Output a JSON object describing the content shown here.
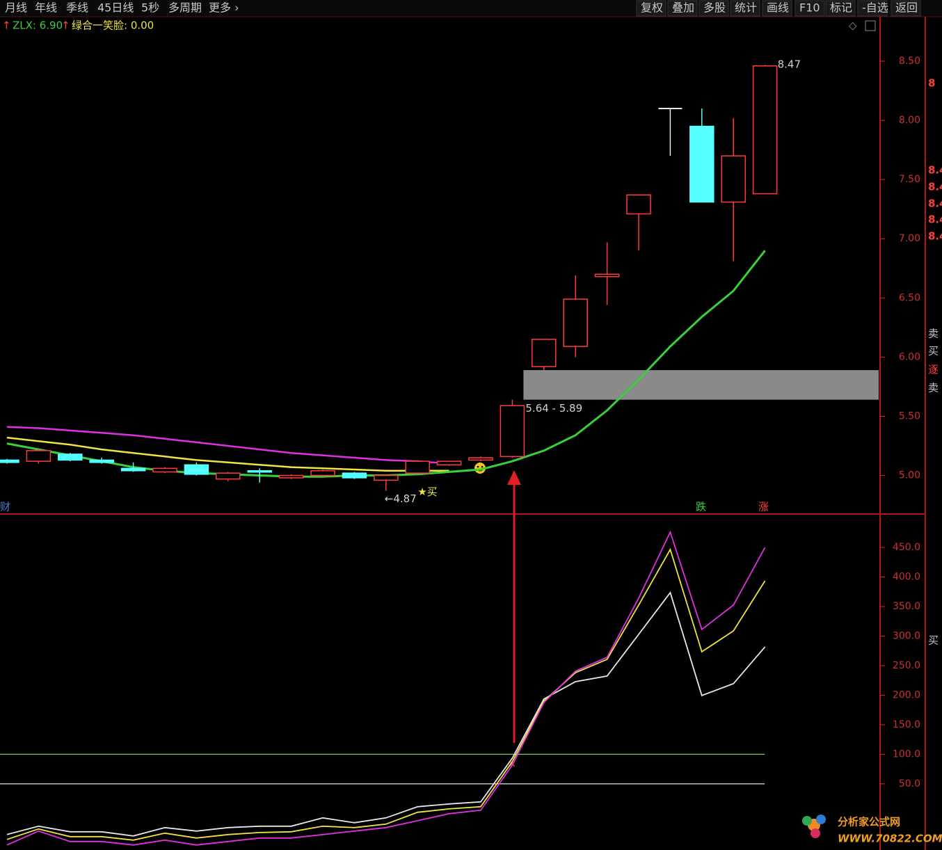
{
  "toolbar": {
    "left": [
      "月线",
      "年线",
      "季线",
      "45日线",
      "5秒",
      "多周期",
      "更多 ›"
    ],
    "right": [
      "复权",
      "叠加",
      "多股",
      "统计",
      "画线",
      "F10",
      "标记",
      "-自选",
      "返回"
    ]
  },
  "legend": [
    "ZLX: 6.90",
    "绿合一笑脸: 0.00"
  ],
  "side_panel": [
    "8",
    "8.4",
    "8.4",
    "8.4",
    "8.4",
    "8.4",
    "卖",
    "买",
    "逐",
    "卖",
    "买"
  ],
  "watermark": {
    "title": "分析家公式网",
    "url": "WWW.70822.COM"
  },
  "chart_data": [
    {
      "type": "candlestick",
      "open": [
        5.13,
        5.12,
        5.18,
        5.13,
        5.06,
        5.03,
        5.09,
        4.97,
        5.04,
        4.98,
        5.0,
        5.02,
        4.96,
        5.02,
        5.09,
        5.13,
        5.16,
        5.92,
        6.09,
        6.68,
        7.21,
        8.1,
        7.95,
        7.31,
        7.38
      ],
      "close": [
        5.11,
        5.21,
        5.13,
        5.11,
        5.04,
        5.06,
        5.01,
        5.02,
        5.03,
        5.0,
        5.04,
        4.98,
        5.0,
        5.12,
        5.12,
        5.15,
        5.59,
        6.15,
        6.49,
        6.7,
        7.37,
        8.1,
        7.31,
        7.7,
        8.46
      ],
      "high": [
        5.14,
        5.22,
        5.19,
        5.15,
        5.11,
        5.07,
        5.11,
        5.03,
        5.06,
        5.01,
        5.05,
        5.03,
        5.01,
        5.13,
        5.12,
        5.16,
        5.64,
        6.15,
        6.69,
        6.97,
        7.37,
        8.1,
        8.1,
        8.02,
        8.47
      ],
      "low": [
        5.1,
        5.1,
        5.12,
        5.1,
        5.03,
        5.02,
        5.0,
        4.95,
        4.94,
        4.97,
        4.99,
        4.97,
        4.87,
        5.01,
        5.08,
        5.12,
        5.15,
        5.89,
        6.0,
        6.44,
        6.9,
        7.7,
        7.31,
        6.81,
        7.38
      ],
      "up_color": "#ff3b3b",
      "down_color": "#54ffff",
      "series": [
        {
          "name": "ZLX",
          "color": "#39d13b",
          "values": [
            5.27,
            5.22,
            5.17,
            5.12,
            5.07,
            5.04,
            5.02,
            5.01,
            5.0,
            4.99,
            4.99,
            5.0,
            5.0,
            5.01,
            5.03,
            5.05,
            5.12,
            5.21,
            5.34,
            5.55,
            5.81,
            6.09,
            6.34,
            6.56,
            6.9
          ]
        },
        {
          "name": "绿合一笑脸",
          "color": "#f0e442",
          "values": [
            5.32,
            5.29,
            5.26,
            5.22,
            5.19,
            5.16,
            5.13,
            5.11,
            5.09,
            5.07,
            5.06,
            5.05,
            5.04,
            5.04,
            5.04,
            null,
            null,
            null,
            null,
            null,
            null,
            null,
            null,
            null,
            null
          ]
        },
        {
          "color": "#e030e0",
          "values": [
            5.41,
            5.4,
            5.38,
            5.36,
            5.34,
            5.31,
            5.28,
            5.25,
            5.22,
            5.19,
            5.17,
            5.15,
            5.13,
            5.12,
            5.1,
            null,
            null,
            null,
            null,
            null,
            null,
            null,
            null,
            null,
            null
          ]
        }
      ],
      "zone": {
        "label": "5.64 - 5.89",
        "low": 5.64,
        "high": 5.89,
        "color": "#8a8a8a"
      },
      "annotations": [
        {
          "text": "8.47",
          "index": 24,
          "value": 8.47
        },
        {
          "text": "←4.87",
          "index": 12,
          "value": 4.87
        },
        {
          "text": "★买",
          "index": 13,
          "value": 4.93
        }
      ],
      "markers": [
        "财",
        "跌",
        "涨"
      ],
      "ylim": [
        4.68,
        8.87
      ],
      "yticks": [
        {
          "value": 5.0,
          "label": "5.00"
        },
        {
          "value": 5.5,
          "label": "5.50"
        },
        {
          "value": 6.0,
          "label": "6.00"
        },
        {
          "value": 6.5,
          "label": "6.50"
        },
        {
          "value": 7.0,
          "label": "7.00"
        },
        {
          "value": 7.5,
          "label": "7.50"
        },
        {
          "value": 8.0,
          "label": "8.00"
        },
        {
          "value": 8.5,
          "label": "8.50"
        }
      ]
    },
    {
      "type": "line",
      "series": [
        {
          "color": "#e8e8e8",
          "values": [
            -35.9,
            -21.8,
            -31.2,
            -31.2,
            -38.2,
            -24.1,
            -30.0,
            -24.1,
            -21.8,
            -21.8,
            -7.6,
            -15.9,
            -7.6,
            11.2,
            15.9,
            19.4,
            93.5,
            193.5,
            222.9,
            232.4,
            302.9,
            373.5,
            199.4,
            219.4,
            281.8
          ]
        },
        {
          "color": "#f0e442",
          "values": [
            -44.1,
            -26.5,
            -39.4,
            -39.4,
            -45.3,
            -33.5,
            -41.8,
            -35.9,
            -32.4,
            -31.2,
            -21.8,
            -24.1,
            -18.2,
            1.8,
            7.6,
            11.2,
            87.6,
            190.0,
            238.2,
            260.6,
            352.4,
            446.5,
            273.5,
            308.8,
            393.5
          ]
        },
        {
          "color": "#e030e0",
          "values": [
            -53.5,
            -30.0,
            -47.6,
            -47.6,
            -53.5,
            -45.3,
            -53.5,
            -47.6,
            -41.8,
            -41.8,
            -35.9,
            -30.0,
            -24.1,
            -12.4,
            -0.6,
            5.3,
            81.8,
            187.6,
            240.6,
            264.1,
            364.1,
            475.9,
            311.2,
            352.4,
            450.0
          ]
        }
      ],
      "reference_lines": [
        {
          "value": 100,
          "color": "#7ccf4a"
        },
        {
          "value": 50,
          "color": "#e8e8e8"
        }
      ],
      "ylim": [
        -62,
        503
      ],
      "yticks": [
        {
          "value": 50,
          "label": "50.0"
        },
        {
          "value": 100,
          "label": "100.0"
        },
        {
          "value": 150,
          "label": "150.0"
        },
        {
          "value": 200,
          "label": "200.0"
        },
        {
          "value": 250,
          "label": "250.0"
        },
        {
          "value": 300,
          "label": "300.0"
        },
        {
          "value": 350,
          "label": "350.0"
        },
        {
          "value": 400,
          "label": "400.0"
        },
        {
          "value": 450,
          "label": "450.0"
        }
      ]
    }
  ]
}
